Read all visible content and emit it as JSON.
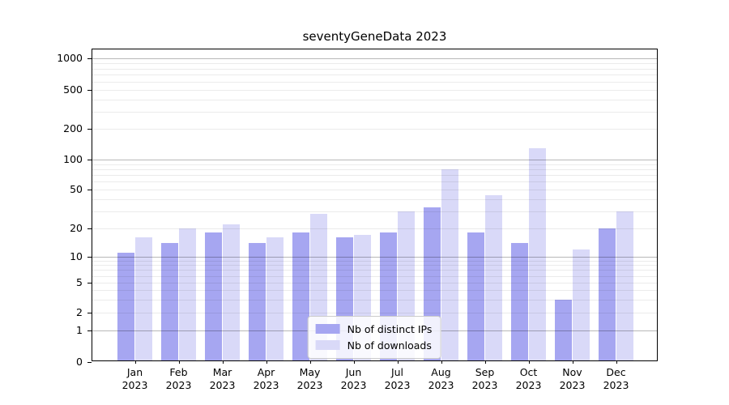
{
  "chart_data": {
    "type": "bar",
    "title": "seventyGeneData 2023",
    "categories": [
      "Jan 2023",
      "Feb 2023",
      "Mar 2023",
      "Apr 2023",
      "May 2023",
      "Jun 2023",
      "Jul 2023",
      "Aug 2023",
      "Sep 2023",
      "Oct 2023",
      "Nov 2023",
      "Dec 2023"
    ],
    "months": [
      "Jan",
      "Feb",
      "Mar",
      "Apr",
      "May",
      "Jun",
      "Jul",
      "Aug",
      "Sep",
      "Oct",
      "Nov",
      "Dec"
    ],
    "year": "2023",
    "series": [
      {
        "name": "Nb of distinct IPs",
        "color": "#a6a6f1",
        "values": [
          11,
          14,
          18,
          14,
          18,
          16,
          18,
          33,
          18,
          14,
          3,
          20
        ]
      },
      {
        "name": "Nb of downloads",
        "color": "#d9d9f8",
        "values": [
          16,
          20,
          22,
          16,
          28,
          17,
          30,
          80,
          44,
          130,
          12,
          30
        ]
      }
    ],
    "yscale": "symlog",
    "yticks": [
      0,
      1,
      2,
      5,
      10,
      20,
      50,
      100,
      200,
      500,
      1000
    ],
    "ylim": [
      0,
      1300
    ],
    "grid": true,
    "legend_position": "lower center"
  }
}
